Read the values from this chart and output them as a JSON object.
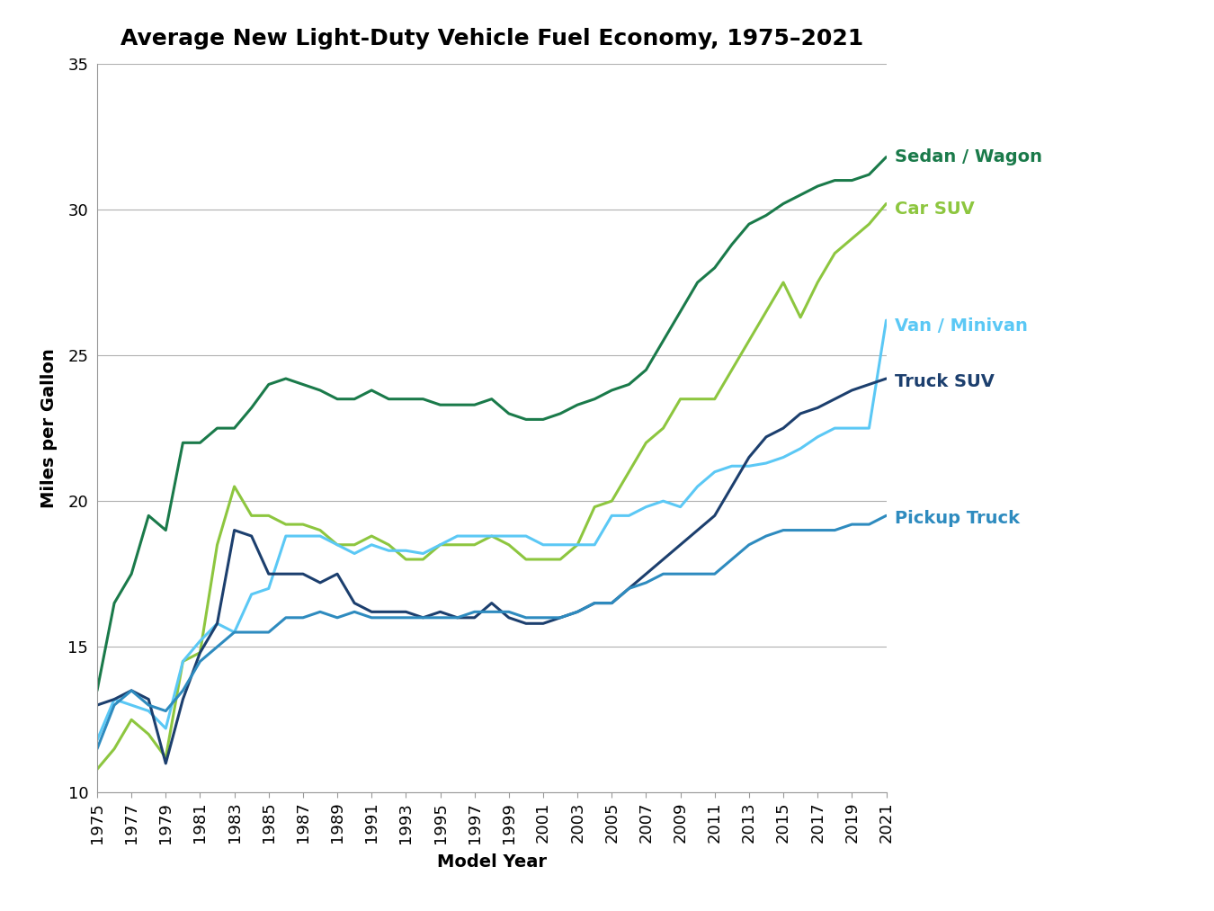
{
  "title": "Average New Light-Duty Vehicle Fuel Economy, 1975–2021",
  "xlabel": "Model Year",
  "ylabel": "Miles per Gallon",
  "ylim": [
    10,
    35
  ],
  "xlim_left": 1975,
  "xlim_right": 2021,
  "yticks": [
    10,
    15,
    20,
    25,
    30,
    35
  ],
  "series": {
    "Sedan / Wagon": {
      "color": "#1a7a4a",
      "linewidth": 2.2,
      "data": {
        "1975": 13.5,
        "1976": 16.5,
        "1977": 17.5,
        "1978": 19.5,
        "1979": 19.0,
        "1980": 22.0,
        "1981": 22.0,
        "1982": 22.5,
        "1983": 22.5,
        "1984": 23.2,
        "1985": 24.0,
        "1986": 24.2,
        "1987": 24.0,
        "1988": 23.8,
        "1989": 23.5,
        "1990": 23.5,
        "1991": 23.8,
        "1992": 23.5,
        "1993": 23.5,
        "1994": 23.5,
        "1995": 23.3,
        "1996": 23.3,
        "1997": 23.3,
        "1998": 23.5,
        "1999": 23.0,
        "2000": 22.8,
        "2001": 22.8,
        "2002": 23.0,
        "2003": 23.3,
        "2004": 23.5,
        "2005": 23.8,
        "2006": 24.0,
        "2007": 24.5,
        "2008": 25.5,
        "2009": 26.5,
        "2010": 27.5,
        "2011": 28.0,
        "2012": 28.8,
        "2013": 29.5,
        "2014": 29.8,
        "2015": 30.2,
        "2016": 30.5,
        "2017": 30.8,
        "2018": 31.0,
        "2019": 31.0,
        "2020": 31.2,
        "2021": 31.8
      }
    },
    "Car SUV": {
      "color": "#8dc63f",
      "linewidth": 2.2,
      "data": {
        "1975": 10.8,
        "1976": 11.5,
        "1977": 12.5,
        "1978": 12.0,
        "1979": 11.2,
        "1980": 14.5,
        "1981": 14.8,
        "1982": 18.5,
        "1983": 20.5,
        "1984": 19.5,
        "1985": 19.5,
        "1986": 19.2,
        "1987": 19.2,
        "1988": 19.0,
        "1989": 18.5,
        "1990": 18.5,
        "1991": 18.8,
        "1992": 18.5,
        "1993": 18.0,
        "1994": 18.0,
        "1995": 18.5,
        "1996": 18.5,
        "1997": 18.5,
        "1998": 18.8,
        "1999": 18.5,
        "2000": 18.0,
        "2001": 18.0,
        "2002": 18.0,
        "2003": 18.5,
        "2004": 19.8,
        "2005": 20.0,
        "2006": 21.0,
        "2007": 22.0,
        "2008": 22.5,
        "2009": 23.5,
        "2010": 23.5,
        "2011": 23.5,
        "2012": 24.5,
        "2013": 25.5,
        "2014": 26.5,
        "2015": 27.5,
        "2016": 26.3,
        "2017": 27.5,
        "2018": 28.5,
        "2019": 29.0,
        "2020": 29.5,
        "2021": 30.2
      }
    },
    "Van / Minivan": {
      "color": "#5bc8f5",
      "linewidth": 2.2,
      "data": {
        "1975": 11.8,
        "1976": 13.2,
        "1977": 13.0,
        "1978": 12.8,
        "1979": 12.2,
        "1980": 14.5,
        "1981": 15.2,
        "1982": 15.8,
        "1983": 15.5,
        "1984": 16.8,
        "1985": 17.0,
        "1986": 18.8,
        "1987": 18.8,
        "1988": 18.8,
        "1989": 18.5,
        "1990": 18.2,
        "1991": 18.5,
        "1992": 18.3,
        "1993": 18.3,
        "1994": 18.2,
        "1995": 18.5,
        "1996": 18.8,
        "1997": 18.8,
        "1998": 18.8,
        "1999": 18.8,
        "2000": 18.8,
        "2001": 18.5,
        "2002": 18.5,
        "2003": 18.5,
        "2004": 18.5,
        "2005": 19.5,
        "2006": 19.5,
        "2007": 19.8,
        "2008": 20.0,
        "2009": 19.8,
        "2010": 20.5,
        "2011": 21.0,
        "2012": 21.2,
        "2013": 21.2,
        "2014": 21.3,
        "2015": 21.5,
        "2016": 21.8,
        "2017": 22.2,
        "2018": 22.5,
        "2019": 22.5,
        "2020": 22.5,
        "2021": 26.2
      }
    },
    "Truck SUV": {
      "color": "#1c3f6e",
      "linewidth": 2.2,
      "data": {
        "1975": 13.0,
        "1976": 13.2,
        "1977": 13.5,
        "1978": 13.2,
        "1979": 11.0,
        "1980": 13.2,
        "1981": 14.8,
        "1982": 15.8,
        "1983": 19.0,
        "1984": 18.8,
        "1985": 17.5,
        "1986": 17.5,
        "1987": 17.5,
        "1988": 17.2,
        "1989": 17.5,
        "1990": 16.5,
        "1991": 16.2,
        "1992": 16.2,
        "1993": 16.2,
        "1994": 16.0,
        "1995": 16.2,
        "1996": 16.0,
        "1997": 16.0,
        "1998": 16.5,
        "1999": 16.0,
        "2000": 15.8,
        "2001": 15.8,
        "2002": 16.0,
        "2003": 16.2,
        "2004": 16.5,
        "2005": 16.5,
        "2006": 17.0,
        "2007": 17.5,
        "2008": 18.0,
        "2009": 18.5,
        "2010": 19.0,
        "2011": 19.5,
        "2012": 20.5,
        "2013": 21.5,
        "2014": 22.2,
        "2015": 22.5,
        "2016": 23.0,
        "2017": 23.2,
        "2018": 23.5,
        "2019": 23.8,
        "2020": 24.0,
        "2021": 24.2
      }
    },
    "Pickup Truck": {
      "color": "#2e8bbf",
      "linewidth": 2.2,
      "data": {
        "1975": 11.5,
        "1976": 13.0,
        "1977": 13.5,
        "1978": 13.0,
        "1979": 12.8,
        "1980": 13.5,
        "1981": 14.5,
        "1982": 15.0,
        "1983": 15.5,
        "1984": 15.5,
        "1985": 15.5,
        "1986": 16.0,
        "1987": 16.0,
        "1988": 16.2,
        "1989": 16.0,
        "1990": 16.2,
        "1991": 16.0,
        "1992": 16.0,
        "1993": 16.0,
        "1994": 16.0,
        "1995": 16.0,
        "1996": 16.0,
        "1997": 16.2,
        "1998": 16.2,
        "1999": 16.2,
        "2000": 16.0,
        "2001": 16.0,
        "2002": 16.0,
        "2003": 16.2,
        "2004": 16.5,
        "2005": 16.5,
        "2006": 17.0,
        "2007": 17.2,
        "2008": 17.5,
        "2009": 17.5,
        "2010": 17.5,
        "2011": 17.5,
        "2012": 18.0,
        "2013": 18.5,
        "2014": 18.8,
        "2015": 19.0,
        "2016": 19.0,
        "2017": 19.0,
        "2018": 19.0,
        "2019": 19.2,
        "2020": 19.2,
        "2021": 19.5
      }
    }
  },
  "legend_labels": [
    "Sedan / Wagon",
    "Car SUV",
    "Van / Minivan",
    "Truck SUV",
    "Pickup Truck"
  ],
  "label_y_positions": [
    31.8,
    30.0,
    26.0,
    24.1,
    19.4
  ],
  "background_color": "#ffffff",
  "plot_bg_color": "#ffffff",
  "grid_color": "#b0b0b0",
  "border_color": "#999999",
  "title_fontsize": 18,
  "label_fontsize": 14,
  "tick_fontsize": 13,
  "annot_fontsize": 14
}
